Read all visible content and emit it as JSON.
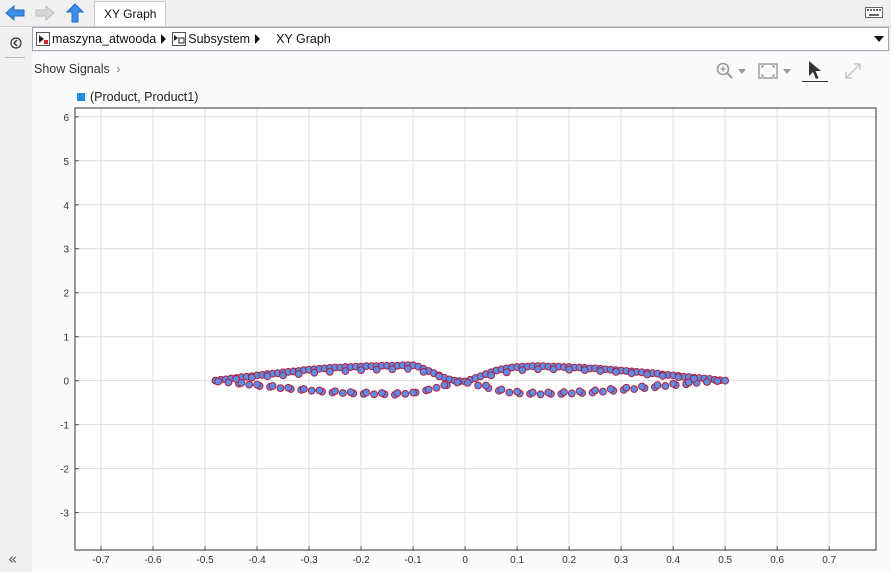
{
  "toolbar": {
    "tab_label": "XY Graph"
  },
  "breadcrumb": {
    "items": [
      {
        "label": "maszyna_atwooda",
        "icon": "simulink-model-icon"
      },
      {
        "label": "Subsystem",
        "icon": "subsystem-icon"
      },
      {
        "label": "XY Graph",
        "icon": ""
      }
    ]
  },
  "main": {
    "show_signals_label": "Show Signals"
  },
  "colors": {
    "marker_fill": "#5b8ee6",
    "marker_edge": "#b02040",
    "legend": "#1e8fe6",
    "grid": "#dedede"
  },
  "chart_data": {
    "type": "scatter",
    "legend": [
      "(Product, Product1)"
    ],
    "xlim": [
      -0.75,
      0.79
    ],
    "ylim": [
      -3.85,
      6.2
    ],
    "xticks": [
      "-0.7",
      "-0.6",
      "-0.5",
      "-0.4",
      "-0.3",
      "-0.2",
      "-0.1",
      "0",
      "0.1",
      "0.2",
      "0.3",
      "0.4",
      "0.5",
      "0.6",
      "0.7"
    ],
    "yticks": [
      "6",
      "5",
      "4",
      "3",
      "2",
      "1",
      "0",
      "-1",
      "-2",
      "-3"
    ],
    "grid": true,
    "series": [
      {
        "name": "(Product, Product1)",
        "x": [
          -0.48,
          -0.47,
          -0.46,
          -0.45,
          -0.44,
          -0.43,
          -0.42,
          -0.41,
          -0.4,
          -0.39,
          -0.38,
          -0.37,
          -0.36,
          -0.35,
          -0.34,
          -0.33,
          -0.32,
          -0.31,
          -0.3,
          -0.29,
          -0.28,
          -0.27,
          -0.26,
          -0.25,
          -0.24,
          -0.23,
          -0.22,
          -0.21,
          -0.2,
          -0.19,
          -0.18,
          -0.17,
          -0.16,
          -0.15,
          -0.14,
          -0.13,
          -0.12,
          -0.11,
          -0.1,
          -0.09,
          -0.08,
          -0.07,
          -0.06,
          -0.05,
          -0.04,
          -0.03,
          -0.02,
          -0.01,
          0,
          0.01,
          0.02,
          0.03,
          0.04,
          0.05,
          0.06,
          0.07,
          0.08,
          0.09,
          0.1,
          0.11,
          0.12,
          0.13,
          0.14,
          0.15,
          0.16,
          0.17,
          0.18,
          0.19,
          0.2,
          0.21,
          0.22,
          0.23,
          0.24,
          0.25,
          0.26,
          0.27,
          0.28,
          0.29,
          0.3,
          0.31,
          0.32,
          0.33,
          0.34,
          0.35,
          0.36,
          0.37,
          0.38,
          0.39,
          0.4,
          0.41,
          0.42,
          0.43,
          0.44,
          0.45,
          0.46,
          0.47,
          0.48,
          0.49,
          0.5,
          -0.475,
          -0.455,
          -0.435,
          -0.415,
          -0.395,
          -0.375,
          -0.355,
          -0.335,
          -0.315,
          -0.295,
          -0.275,
          -0.255,
          -0.235,
          -0.215,
          -0.195,
          -0.175,
          -0.155,
          -0.135,
          -0.115,
          -0.095,
          -0.075,
          -0.055,
          -0.035,
          -0.015,
          0.005,
          0.025,
          0.045,
          0.065,
          0.085,
          0.105,
          0.125,
          0.145,
          0.165,
          0.185,
          0.205,
          0.225,
          0.245,
          0.265,
          0.285,
          0.305,
          0.325,
          0.345,
          0.365,
          0.385,
          0.405,
          0.425,
          0.445,
          0.465,
          0.485,
          -0.44,
          -0.41,
          -0.38,
          -0.35,
          -0.32,
          -0.29,
          -0.26,
          -0.23,
          -0.2,
          -0.17,
          -0.14,
          -0.11,
          -0.08,
          -0.05,
          0.05,
          0.08,
          0.11,
          0.14,
          0.17,
          0.2,
          0.23,
          0.26,
          0.29,
          0.32,
          0.35,
          0.38,
          0.41,
          0.44,
          -0.43,
          -0.4,
          -0.37,
          -0.34,
          -0.31,
          -0.28,
          -0.25,
          -0.22,
          -0.19,
          -0.16,
          -0.13,
          -0.1,
          -0.07,
          -0.04,
          0.04,
          0.07,
          0.1,
          0.13,
          0.16,
          0.19,
          0.22,
          0.25,
          0.28,
          0.31,
          0.34,
          0.37,
          0.4,
          0.43
        ],
        "y": [
          0.0,
          0.02,
          0.03,
          0.05,
          0.06,
          0.08,
          0.09,
          0.1,
          0.12,
          0.13,
          0.15,
          0.16,
          0.17,
          0.19,
          0.2,
          0.21,
          0.22,
          0.24,
          0.25,
          0.26,
          0.27,
          0.28,
          0.29,
          0.3,
          0.3,
          0.31,
          0.31,
          0.32,
          0.32,
          0.33,
          0.33,
          0.33,
          0.34,
          0.34,
          0.34,
          0.34,
          0.35,
          0.35,
          0.35,
          0.32,
          0.27,
          0.22,
          0.17,
          0.12,
          0.07,
          0.03,
          0.0,
          -0.01,
          -0.02,
          0.02,
          0.06,
          0.1,
          0.15,
          0.19,
          0.23,
          0.26,
          0.28,
          0.3,
          0.31,
          0.32,
          0.32,
          0.33,
          0.33,
          0.33,
          0.32,
          0.32,
          0.32,
          0.31,
          0.31,
          0.3,
          0.3,
          0.29,
          0.28,
          0.28,
          0.27,
          0.26,
          0.25,
          0.24,
          0.23,
          0.22,
          0.21,
          0.2,
          0.19,
          0.18,
          0.17,
          0.16,
          0.14,
          0.13,
          0.12,
          0.11,
          0.09,
          0.08,
          0.07,
          0.06,
          0.05,
          0.04,
          0.02,
          0.01,
          0.0,
          -0.02,
          -0.04,
          -0.07,
          -0.09,
          -0.12,
          -0.14,
          -0.17,
          -0.19,
          -0.21,
          -0.23,
          -0.25,
          -0.27,
          -0.28,
          -0.29,
          -0.3,
          -0.31,
          -0.31,
          -0.32,
          -0.3,
          -0.27,
          -0.22,
          -0.16,
          -0.1,
          -0.04,
          -0.05,
          -0.11,
          -0.17,
          -0.23,
          -0.27,
          -0.29,
          -0.3,
          -0.31,
          -0.3,
          -0.3,
          -0.29,
          -0.28,
          -0.27,
          -0.25,
          -0.23,
          -0.21,
          -0.19,
          -0.17,
          -0.15,
          -0.12,
          -0.1,
          -0.08,
          -0.05,
          -0.03,
          -0.01,
          0.04,
          0.07,
          0.1,
          0.12,
          0.15,
          0.18,
          0.2,
          0.22,
          0.24,
          0.25,
          0.26,
          0.27,
          0.2,
          0.1,
          0.12,
          0.19,
          0.24,
          0.26,
          0.26,
          0.25,
          0.24,
          0.22,
          0.2,
          0.17,
          0.14,
          0.11,
          0.08,
          0.05,
          -0.05,
          -0.09,
          -0.12,
          -0.16,
          -0.19,
          -0.22,
          -0.24,
          -0.26,
          -0.27,
          -0.28,
          -0.28,
          -0.27,
          -0.2,
          -0.1,
          -0.11,
          -0.2,
          -0.25,
          -0.27,
          -0.27,
          -0.26,
          -0.24,
          -0.22,
          -0.19,
          -0.16,
          -0.13,
          -0.1,
          -0.07,
          -0.04
        ]
      }
    ]
  }
}
